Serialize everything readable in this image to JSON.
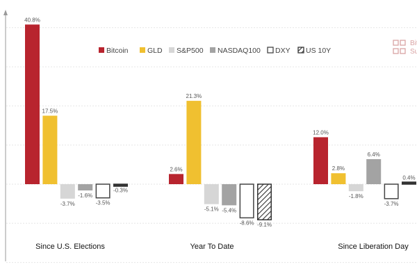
{
  "chart_data": {
    "type": "bar",
    "categories": [
      "Since U.S. Elections",
      "Year To Date",
      "Since Liberation Day"
    ],
    "series": [
      {
        "name": "Bitcoin",
        "color": "#b8242e",
        "style": "solid",
        "values": [
          40.8,
          2.6,
          12.0
        ],
        "labels": [
          "40.8%",
          "2.6%",
          "12.0%"
        ]
      },
      {
        "name": "GLD",
        "color": "#f0c030",
        "style": "solid",
        "values": [
          17.5,
          21.3,
          2.8
        ],
        "labels": [
          "17.5%",
          "21.3%",
          "2.8%"
        ]
      },
      {
        "name": "S&P500",
        "color": "#d6d6d6",
        "style": "solid",
        "values": [
          -3.7,
          -5.1,
          -1.8
        ],
        "labels": [
          "-3.7%",
          "-5.1%",
          "-1.8%"
        ]
      },
      {
        "name": "NASDAQ100",
        "color": "#a3a3a3",
        "style": "solid",
        "values": [
          -1.6,
          -5.4,
          6.4
        ],
        "labels": [
          "-1.6%",
          "-5.4%",
          "6.4%"
        ]
      },
      {
        "name": "DXY",
        "color": "#ffffff",
        "style": "outline",
        "values": [
          -3.5,
          -8.6,
          -3.7
        ],
        "labels": [
          "-3.5%",
          "-8.6%",
          "-3.7%"
        ]
      },
      {
        "name": "US 10Y",
        "color": "#333333",
        "style": "hatched",
        "values": [
          -0.3,
          -9.1,
          0.4
        ],
        "labels": [
          "-0.3%",
          "-9.1%",
          "0.4%"
        ]
      }
    ],
    "ylim": [
      -20,
      40
    ],
    "grid": true,
    "legend_position": "top",
    "title": "",
    "xlabel": "",
    "ylabel": ""
  },
  "logo": {
    "text_line1": "Bit",
    "text_line2": "Su"
  }
}
